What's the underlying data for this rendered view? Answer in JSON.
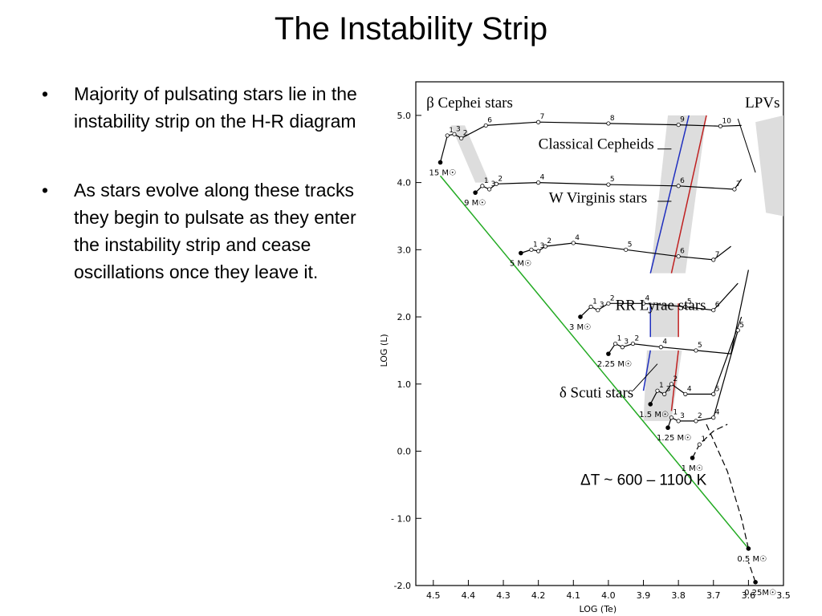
{
  "slide": {
    "title": "The Instability Strip",
    "bullets": [
      {
        "text": "Majority of pulsating stars lie in the instability strip on the H-R diagram"
      },
      {
        "text": "As stars evolve along these tracks they begin to pulsate as they enter the instability strip and cease oscillations once they leave it."
      }
    ],
    "bullet_glyph": "•"
  },
  "chart_data": {
    "type": "line",
    "xlabel": "LOG (Te)",
    "ylabel": "LOG (L)",
    "x_reversed": true,
    "xlim": [
      4.55,
      3.5
    ],
    "ylim": [
      -2.0,
      5.5
    ],
    "x_ticks": [
      "4.5",
      "4.4",
      "4.3",
      "4.2",
      "4.1",
      "4.0",
      "3.9",
      "3.8",
      "3.7",
      "3.6",
      "3.5"
    ],
    "y_ticks": [
      "5.0",
      "4.0",
      "3.0",
      "2.0",
      "1.0",
      "0.0",
      "- 1.0",
      "-2.0"
    ],
    "annotation": "ΔT ~ 600 – 1100 K",
    "regions": [
      {
        "label": "β Cephei stars"
      },
      {
        "label": "LPVs"
      },
      {
        "label": "Classical Cepheids"
      },
      {
        "label": "W Virginis stars"
      },
      {
        "label": "RR Lyrae stars"
      },
      {
        "label": "δ Scuti stars"
      }
    ],
    "main_sequence_color": "#22aa22",
    "strip_blue_edge_color": "#1f2fbf",
    "strip_red_edge_color": "#c02020",
    "strip_fill_color": "#d9d9d9",
    "series": [
      {
        "name": "15 M☉",
        "mass_label": "15 M☉",
        "x": [
          4.48,
          4.46,
          4.44,
          4.42,
          4.35,
          4.2,
          4.0,
          3.8,
          3.68,
          3.62
        ],
        "y": [
          4.3,
          4.7,
          4.72,
          4.66,
          4.85,
          4.9,
          4.88,
          4.86,
          4.84,
          4.85
        ],
        "points": [
          "1",
          "3",
          "2",
          "6",
          "7",
          "8",
          "9",
          "10"
        ]
      },
      {
        "name": "9 M☉",
        "mass_label": "9 M☉",
        "x": [
          4.38,
          4.36,
          4.34,
          4.32,
          4.2,
          4.0,
          3.8,
          3.64,
          3.62
        ],
        "y": [
          3.85,
          3.95,
          3.9,
          3.98,
          4.0,
          3.97,
          3.95,
          3.9,
          4.05
        ],
        "points": [
          "1",
          "3",
          "2",
          "4",
          "5",
          "6",
          "7"
        ]
      },
      {
        "name": "5 M☉",
        "mass_label": "5 M☉",
        "x": [
          4.25,
          4.22,
          4.2,
          4.18,
          4.1,
          3.95,
          3.8,
          3.7,
          3.65
        ],
        "y": [
          2.95,
          3.0,
          2.98,
          3.05,
          3.1,
          3.0,
          2.9,
          2.85,
          3.05
        ],
        "points": [
          "1",
          "3",
          "2",
          "4",
          "5",
          "6",
          "7"
        ]
      },
      {
        "name": "3 M☉",
        "mass_label": "3 M☉",
        "x": [
          4.08,
          4.05,
          4.03,
          4.0,
          3.9,
          3.78,
          3.7,
          3.63
        ],
        "y": [
          2.0,
          2.15,
          2.1,
          2.2,
          2.2,
          2.15,
          2.1,
          2.5
        ],
        "points": [
          "1",
          "3",
          "2",
          "4",
          "5",
          "6"
        ]
      },
      {
        "name": "2.25 M☉",
        "mass_label": "2.25 M☉",
        "x": [
          4.0,
          3.98,
          3.96,
          3.93,
          3.85,
          3.75,
          3.65,
          3.6
        ],
        "y": [
          1.45,
          1.6,
          1.55,
          1.6,
          1.55,
          1.5,
          1.45,
          2.7
        ],
        "points": [
          "1",
          "3",
          "2",
          "4",
          "5"
        ]
      },
      {
        "name": "1.5 M☉",
        "mass_label": "1.5 M☉",
        "x": [
          3.88,
          3.86,
          3.84,
          3.82,
          3.78,
          3.7,
          3.62
        ],
        "y": [
          0.7,
          0.9,
          0.85,
          1.0,
          0.85,
          0.85,
          2.0
        ],
        "points": [
          "1",
          "3",
          "2",
          "4",
          "5"
        ]
      },
      {
        "name": "1.25 M☉",
        "mass_label": "1.25 M☉",
        "x": [
          3.83,
          3.82,
          3.8,
          3.75,
          3.7,
          3.63
        ],
        "y": [
          0.35,
          0.5,
          0.45,
          0.45,
          0.5,
          1.8
        ],
        "points": [
          "1",
          "3",
          "2",
          "4",
          "5"
        ]
      },
      {
        "name": "1 M☉",
        "mass_label": "1 M☉",
        "x": [
          3.76,
          3.74,
          3.7,
          3.66
        ],
        "y": [
          -0.1,
          0.1,
          0.3,
          0.4
        ],
        "points": [
          "1"
        ]
      },
      {
        "name": "0.5 M☉",
        "mass_label": "0.5 M☉",
        "x": [
          3.6,
          3.62,
          3.66,
          3.72
        ],
        "y": [
          -1.45,
          -1.0,
          -0.3,
          0.4
        ],
        "points": []
      },
      {
        "name": "0.25M☉",
        "mass_label": "0.25M☉",
        "x": [
          3.58,
          3.6
        ],
        "y": [
          -1.95,
          -1.65
        ],
        "points": []
      }
    ]
  }
}
